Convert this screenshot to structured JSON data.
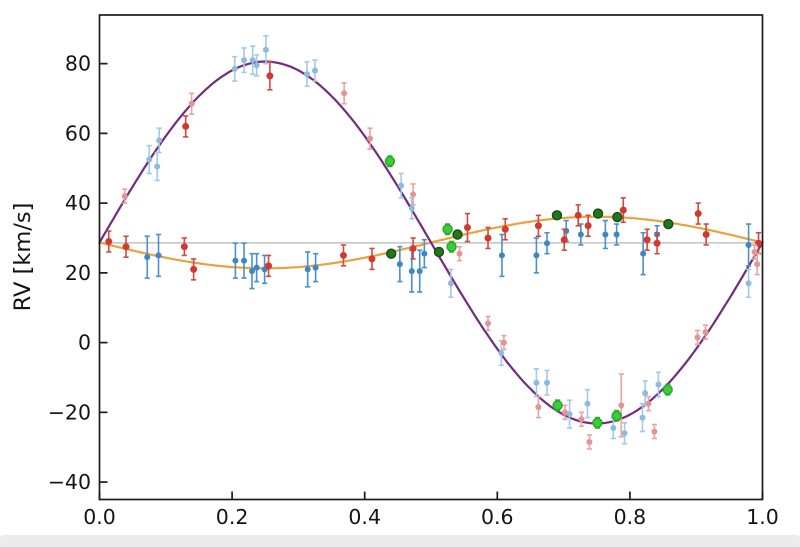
{
  "page": {
    "background": "#ffffff",
    "bottom_strip_color": "#ebebeb"
  },
  "chart_data": {
    "type": "scatter",
    "title": "",
    "xlabel": "",
    "ylabel": "RV [km/s]",
    "xlim": [
      0.0,
      1.0
    ],
    "ylim": [
      -44.8,
      94.0
    ],
    "grid": false,
    "legend_position": "none",
    "axis_color": "#1c1c1c",
    "tick_direction": "in",
    "x_tick_values": [
      0.0,
      0.2,
      0.4,
      0.6,
      0.8,
      1.0
    ],
    "x_tick_labels": [
      "0.0",
      "0.2",
      "0.4",
      "0.6",
      "0.8",
      "1.0"
    ],
    "y_tick_values": [
      -40,
      -20,
      0,
      20,
      40,
      60,
      80
    ],
    "y_tick_labels": [
      "−40",
      "−20",
      "0",
      "20",
      "40",
      "60",
      "80"
    ],
    "systemic_velocity": {
      "value": 28.6,
      "color": "#b5b5b5"
    },
    "curves": [
      {
        "name": "primary-orbit-model",
        "color": "#722b80",
        "gamma": 28.7,
        "semi_amplitude": 51.9,
        "sign": 1
      },
      {
        "name": "secondary-orbit-model",
        "color": "#eaa23c",
        "gamma": 28.7,
        "semi_amplitude": 7.4,
        "sign": -1
      }
    ],
    "series": [
      {
        "name": "primary-light-blue",
        "color": "#8cbbdf",
        "bar_color": "#a3c9e6",
        "radius": 3,
        "edge": "",
        "points": [
          [
            0.075,
            52.5,
            4
          ],
          [
            0.087,
            50.5,
            4
          ],
          [
            0.09,
            58,
            3.5
          ],
          [
            0.204,
            78.5,
            3.5
          ],
          [
            0.218,
            81,
            3.5
          ],
          [
            0.231,
            81,
            4
          ],
          [
            0.237,
            79.5,
            3
          ],
          [
            0.251,
            84,
            4
          ],
          [
            0.313,
            77,
            3.5
          ],
          [
            0.325,
            78,
            3
          ],
          [
            0.455,
            45,
            3.5
          ],
          [
            0.471,
            38.5,
            3
          ],
          [
            0.53,
            17,
            4
          ],
          [
            0.606,
            -3,
            3.5
          ],
          [
            0.659,
            -11.5,
            4
          ],
          [
            0.675,
            -11.5,
            3.5
          ],
          [
            0.709,
            -20.5,
            4
          ],
          [
            0.736,
            -17.5,
            4
          ],
          [
            0.775,
            -24.5,
            3
          ],
          [
            0.792,
            -26,
            3
          ],
          [
            0.819,
            -21.5,
            4
          ],
          [
            0.823,
            -14.5,
            3.5
          ],
          [
            0.843,
            -12,
            3.5
          ],
          [
            0.979,
            17,
            4
          ]
        ]
      },
      {
        "name": "secondary-steel-blue",
        "color": "#3f86c4",
        "bar_color": "#4b90cb",
        "radius": 3,
        "edge": "",
        "points": [
          [
            0.072,
            24.5,
            6
          ],
          [
            0.089,
            25,
            6
          ],
          [
            0.205,
            23.5,
            5
          ],
          [
            0.218,
            23.5,
            5
          ],
          [
            0.23,
            20.5,
            5
          ],
          [
            0.237,
            21.5,
            4
          ],
          [
            0.249,
            21,
            4
          ],
          [
            0.314,
            21,
            5
          ],
          [
            0.326,
            21.5,
            4
          ],
          [
            0.453,
            22.5,
            5
          ],
          [
            0.471,
            20.5,
            6
          ],
          [
            0.483,
            20.5,
            6
          ],
          [
            0.49,
            25.5,
            4
          ],
          [
            0.607,
            25,
            6
          ],
          [
            0.659,
            25,
            5
          ],
          [
            0.675,
            28.5,
            3
          ],
          [
            0.704,
            32,
            3
          ],
          [
            0.726,
            31,
            3
          ],
          [
            0.763,
            31,
            4
          ],
          [
            0.78,
            31,
            3
          ],
          [
            0.82,
            25.5,
            6
          ],
          [
            0.841,
            31,
            2.5
          ],
          [
            0.979,
            28,
            6
          ]
        ]
      },
      {
        "name": "red-measurements",
        "color": "#d13a30",
        "bar_color": "#d04a40",
        "radius": 3.5,
        "edge": "",
        "points": [
          [
            0.014,
            29,
            3
          ],
          [
            0.04,
            27.5,
            3
          ],
          [
            0.128,
            27.5,
            2.5
          ],
          [
            0.13,
            62,
            3
          ],
          [
            0.142,
            21,
            3
          ],
          [
            0.255,
            22,
            3
          ],
          [
            0.257,
            76.5,
            4
          ],
          [
            0.368,
            25,
            3
          ],
          [
            0.411,
            24,
            3
          ],
          [
            0.473,
            27,
            3
          ],
          [
            0.555,
            33,
            4
          ],
          [
            0.586,
            30,
            3
          ],
          [
            0.612,
            32.5,
            3
          ],
          [
            0.662,
            33.5,
            3
          ],
          [
            0.701,
            29.5,
            3
          ],
          [
            0.722,
            36.5,
            3
          ],
          [
            0.737,
            33.5,
            3
          ],
          [
            0.79,
            38,
            3.5
          ],
          [
            0.826,
            29.5,
            3
          ],
          [
            0.841,
            28.5,
            3
          ],
          [
            0.903,
            37,
            3
          ],
          [
            0.915,
            31,
            3
          ],
          [
            0.994,
            28.5,
            3
          ]
        ]
      },
      {
        "name": "pink-measurements",
        "color": "#e39494",
        "bar_color": "#e8a3a3",
        "radius": 3,
        "edge": "",
        "points": [
          [
            0.038,
            42,
            2
          ],
          [
            0.139,
            68.5,
            3
          ],
          [
            0.369,
            71.5,
            3
          ],
          [
            0.408,
            58.5,
            3
          ],
          [
            0.473,
            42.5,
            3
          ],
          [
            0.543,
            25.5,
            2
          ],
          [
            0.586,
            5.5,
            2
          ],
          [
            0.61,
            0,
            2
          ],
          [
            0.662,
            -18.5,
            3
          ],
          [
            0.702,
            -20,
            2
          ],
          [
            0.727,
            -22,
            2
          ],
          [
            0.739,
            -28.5,
            2
          ],
          [
            0.787,
            -18,
            9
          ],
          [
            0.828,
            -17.5,
            2
          ],
          [
            0.837,
            -25.5,
            2
          ],
          [
            0.902,
            1.5,
            2
          ],
          [
            0.914,
            3,
            2
          ],
          [
            0.988,
            26,
            2
          ],
          [
            0.992,
            22.5,
            3
          ]
        ]
      },
      {
        "name": "bright-green-measurements",
        "color": "#3bcc3b",
        "bar_color": "#2fb52f",
        "radius": 4.5,
        "edge": "#28a428",
        "points": [
          [
            0.438,
            52,
            1.5
          ],
          [
            0.525,
            32.5,
            1.5
          ],
          [
            0.531,
            27.5,
            1.5
          ],
          [
            0.691,
            -18,
            1.5
          ],
          [
            0.751,
            -23,
            1.5
          ],
          [
            0.78,
            -21,
            1.5
          ],
          [
            0.857,
            -13.5,
            1.5
          ]
        ]
      },
      {
        "name": "dark-green-measurements",
        "color": "#21761f",
        "bar_color": "#1d601c",
        "radius": 4.5,
        "edge": "#154d14",
        "points": [
          [
            0.44,
            25.5,
            1
          ],
          [
            0.512,
            26,
            1
          ],
          [
            0.54,
            31,
            1
          ],
          [
            0.69,
            36.5,
            1
          ],
          [
            0.752,
            37,
            1
          ],
          [
            0.781,
            36,
            1
          ],
          [
            0.858,
            34,
            1
          ]
        ]
      }
    ]
  }
}
